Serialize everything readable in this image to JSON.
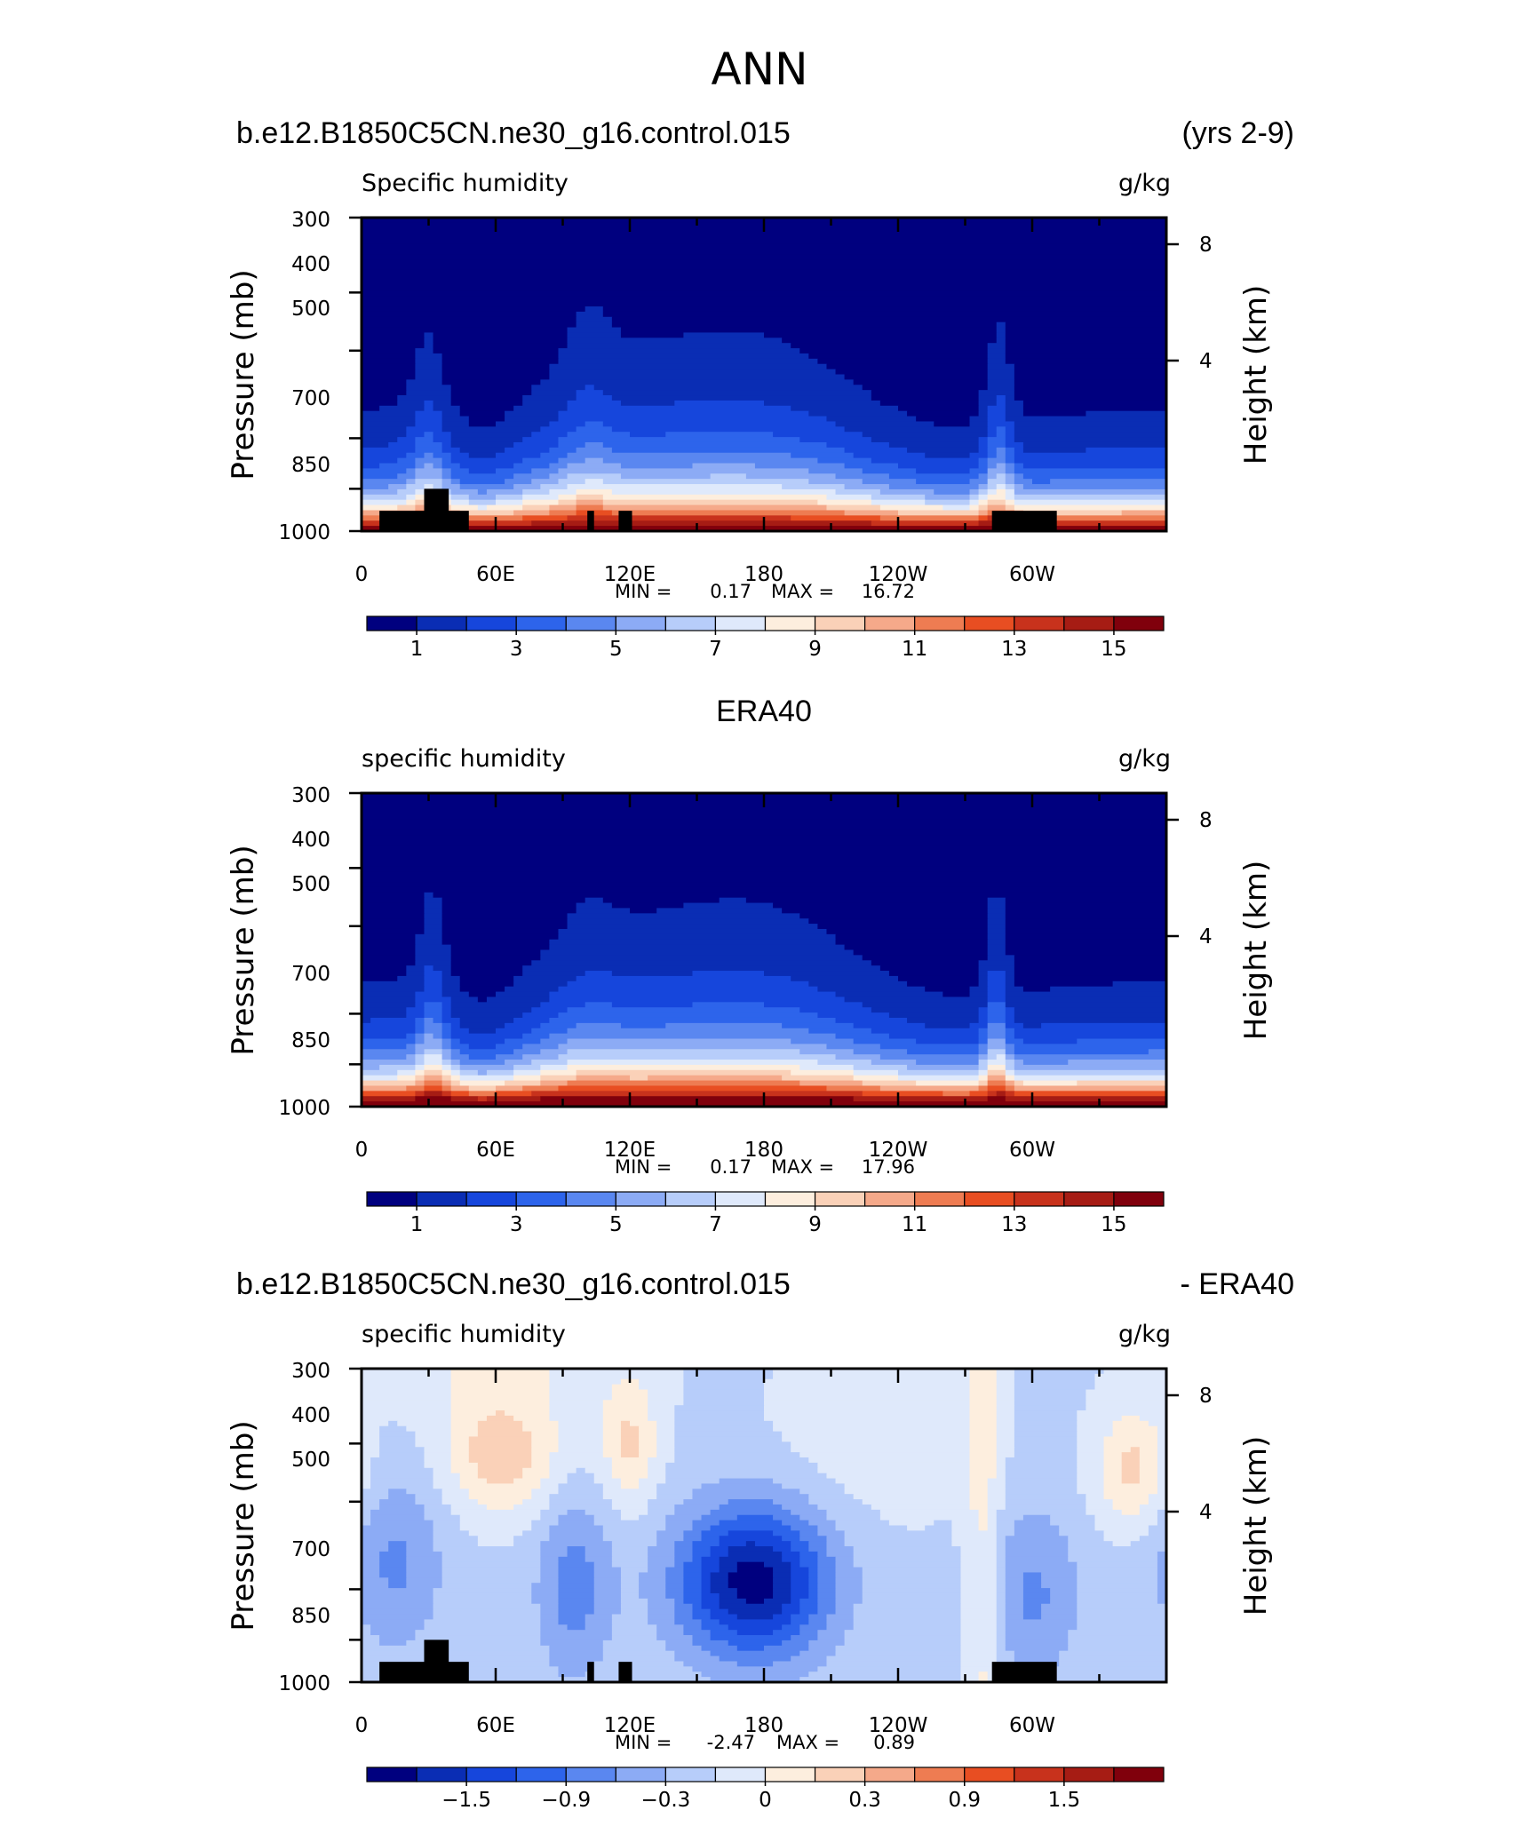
{
  "figure": {
    "season": "ANN",
    "case_name": "b.e12.B1850C5CN.ne30_g16.control.015",
    "years": "(yrs 2-9)",
    "obs_name": "ERA40",
    "diff_right": "- ERA40"
  },
  "chart_data": [
    {
      "type": "heatmap",
      "panel": "model",
      "title_left": "Specific humidity",
      "title_right": "g/kg",
      "ylabel": "Pressure (mb)",
      "ylabel_right": "Height (km)",
      "x_ticks": [
        "0",
        "60E",
        "120E",
        "180",
        "120W",
        "60W"
      ],
      "y_ticks": [
        "300",
        "400",
        "500",
        "700",
        "850",
        "1000"
      ],
      "y_ticks_right": [
        "8",
        "4"
      ],
      "y_scale": "log",
      "ylim": [
        1000,
        300
      ],
      "xlim": [
        0,
        360
      ],
      "min_label": "MIN =",
      "min_value": "0.17",
      "max_label": "MAX =",
      "max_value": "16.72",
      "colorbar_ticks": [
        "1",
        "3",
        "5",
        "7",
        "9",
        "11",
        "13",
        "15"
      ],
      "colors": [
        "#00007f",
        "#0a2db4",
        "#1646dc",
        "#2d64eb",
        "#5a87f0",
        "#8cabf5",
        "#b7cdfa",
        "#dfe9fb",
        "#fdeede",
        "#fad1b8",
        "#f5a98a",
        "#ee7c52",
        "#e84e22",
        "#c8321c",
        "#a61c14",
        "#80000c"
      ],
      "masked_terrain": true
    },
    {
      "type": "heatmap",
      "panel": "obs",
      "title": "ERA40",
      "title_left": "specific humidity",
      "title_right": "g/kg",
      "ylabel": "Pressure (mb)",
      "ylabel_right": "Height (km)",
      "x_ticks": [
        "0",
        "60E",
        "120E",
        "180",
        "120W",
        "60W"
      ],
      "y_ticks": [
        "300",
        "400",
        "500",
        "700",
        "850",
        "1000"
      ],
      "y_ticks_right": [
        "8",
        "4"
      ],
      "y_scale": "log",
      "ylim": [
        1000,
        300
      ],
      "xlim": [
        0,
        360
      ],
      "min_label": "MIN =",
      "min_value": "0.17",
      "max_label": "MAX =",
      "max_value": "17.96",
      "colorbar_ticks": [
        "1",
        "3",
        "5",
        "7",
        "9",
        "11",
        "13",
        "15"
      ],
      "colors": [
        "#00007f",
        "#0a2db4",
        "#1646dc",
        "#2d64eb",
        "#5a87f0",
        "#8cabf5",
        "#b7cdfa",
        "#dfe9fb",
        "#fdeede",
        "#fad1b8",
        "#f5a98a",
        "#ee7c52",
        "#e84e22",
        "#c8321c",
        "#a61c14",
        "#80000c"
      ],
      "masked_terrain": false
    },
    {
      "type": "heatmap",
      "panel": "difference",
      "title_left": "specific humidity",
      "title_right": "g/kg",
      "ylabel": "Pressure (mb)",
      "ylabel_right": "Height (km)",
      "x_ticks": [
        "0",
        "60E",
        "120E",
        "180",
        "120W",
        "60W"
      ],
      "y_ticks": [
        "300",
        "400",
        "500",
        "700",
        "850",
        "1000"
      ],
      "y_ticks_right": [
        "8",
        "4"
      ],
      "y_scale": "log",
      "ylim": [
        1000,
        300
      ],
      "xlim": [
        0,
        360
      ],
      "min_label": "MIN =",
      "min_value": "-2.47",
      "max_label": "MAX =",
      "max_value": "0.89",
      "colorbar_ticks": [
        "-1.5",
        "-0.9",
        "-0.3",
        "0",
        "0.3",
        "0.9",
        "1.5"
      ],
      "colorbar_tick_slots": [
        2,
        4,
        6,
        8,
        10,
        12,
        14
      ],
      "colors": [
        "#00007f",
        "#0a2db4",
        "#1646dc",
        "#2d64eb",
        "#5a87f0",
        "#8cabf5",
        "#b7cdfa",
        "#dfe9fb",
        "#fdeede",
        "#fad1b8",
        "#f5a98a",
        "#ee7c52",
        "#e84e22",
        "#c8321c",
        "#a61c14",
        "#80000c"
      ],
      "masked_terrain": true
    }
  ]
}
